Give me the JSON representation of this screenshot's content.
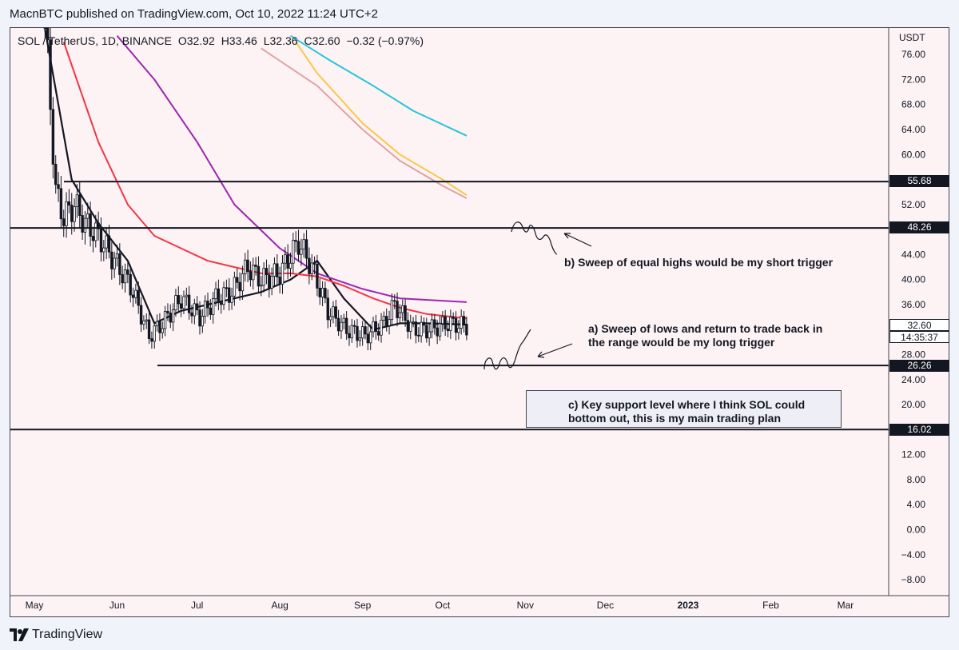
{
  "header": {
    "published_by": "MacnBTC published on TradingView.com, Oct 10, 2022 11:24 UTC+2"
  },
  "legend": {
    "symbol": "SOL / TetherUS, 1D, BINANCE",
    "open": "O32.92",
    "high": "H33.46",
    "low": "L32.36",
    "close": "C32.60",
    "change": "−0.32 (−0.97%)"
  },
  "price_axis": {
    "unit": "USDT",
    "ticks": [
      "76.00",
      "72.00",
      "68.00",
      "64.00",
      "60.00",
      "52.00",
      "44.00",
      "40.00",
      "36.00",
      "28.00",
      "24.00",
      "20.00",
      "12.00",
      "8.00",
      "4.00",
      "0.00",
      "−4.00",
      "−8.00"
    ]
  },
  "time_axis": {
    "ticks": [
      "May",
      "Jun",
      "Jul",
      "Aug",
      "Sep",
      "Oct",
      "Nov",
      "Dec",
      "2023",
      "Feb",
      "Mar"
    ]
  },
  "price_tags": {
    "level_55": "55.68",
    "level_48": "48.26",
    "last_price": "32.60",
    "countdown": "14:35:37",
    "level_26": "26.26",
    "level_16": "16.02"
  },
  "annotations": {
    "b": "b) Sweep of equal highs would be my short trigger",
    "a_line1": "a) Sweep of lows and return to trade back in",
    "a_line2": "the range would be my long trigger",
    "c_line1": "c) Key support level where I think SOL could",
    "c_line2": "bottom out, this is my main trading plan"
  },
  "footer": {
    "brand": "TradingView"
  },
  "colors": {
    "background": "#fdf2f4",
    "ema_black": "#131722",
    "ema_red": "#f23645",
    "ema_purple": "#9c27b0",
    "ema_yellow": "#f7c948",
    "ema_pink": "#e0a3a3",
    "ema_cyan": "#26c6da"
  },
  "chart_data": {
    "type": "line",
    "title": "SOL / TetherUS, 1D, BINANCE",
    "ylabel": "USDT",
    "ylim": [
      -10,
      79
    ],
    "x_ticks": [
      "May",
      "Jun",
      "Jul",
      "Aug",
      "Sep",
      "Oct",
      "Nov",
      "Dec",
      "2023",
      "Feb",
      "Mar"
    ],
    "horizontal_levels": [
      55.68,
      48.26,
      26.26,
      16.02
    ],
    "candles_approx": {
      "x": [
        "2022-05-05",
        "2022-05-09",
        "2022-05-12",
        "2022-05-16",
        "2022-05-20",
        "2022-05-25",
        "2022-05-31",
        "2022-06-06",
        "2022-06-13",
        "2022-06-18",
        "2022-06-25",
        "2022-07-02",
        "2022-07-08",
        "2022-07-14",
        "2022-07-20",
        "2022-07-25",
        "2022-08-01",
        "2022-08-08",
        "2022-08-13",
        "2022-08-19",
        "2022-08-26",
        "2022-09-02",
        "2022-09-09",
        "2022-09-13",
        "2022-09-20",
        "2022-09-26",
        "2022-10-03",
        "2022-10-10"
      ],
      "close": [
        82,
        54,
        50,
        52,
        49,
        47,
        43,
        39,
        31,
        33,
        37,
        34,
        37,
        38,
        42,
        40,
        41,
        46,
        42,
        35,
        32,
        31,
        33,
        36,
        32,
        32,
        33,
        32.6
      ]
    },
    "series": [
      {
        "name": "",
        "color": "#131722",
        "x": [
          "2022-05-05",
          "2022-05-15",
          "2022-05-25",
          "2022-06-05",
          "2022-06-15",
          "2022-06-25",
          "2022-07-05",
          "2022-07-15",
          "2022-07-25",
          "2022-08-05",
          "2022-08-15",
          "2022-08-25",
          "2022-09-05",
          "2022-09-15",
          "2022-09-25",
          "2022-10-10"
        ],
        "values": [
          80,
          56,
          49,
          43,
          33,
          35,
          36,
          37,
          38,
          40,
          43,
          37,
          32,
          33,
          33,
          32.8
        ]
      },
      {
        "name": "",
        "color": "#f23645",
        "x": [
          "2022-05-12",
          "2022-05-25",
          "2022-06-05",
          "2022-06-15",
          "2022-06-25",
          "2022-07-05",
          "2022-07-15",
          "2022-07-25",
          "2022-08-05",
          "2022-08-15",
          "2022-08-25",
          "2022-09-05",
          "2022-09-15",
          "2022-09-25",
          "2022-10-10"
        ],
        "values": [
          78,
          62,
          52,
          47,
          45,
          43,
          42,
          41,
          41,
          40.5,
          39,
          37,
          35.5,
          34.5,
          33.8
        ]
      },
      {
        "name": "",
        "color": "#9c27b0",
        "x": [
          "2022-06-01",
          "2022-06-15",
          "2022-07-01",
          "2022-07-15",
          "2022-08-01",
          "2022-08-15",
          "2022-09-01",
          "2022-09-15",
          "2022-10-10"
        ],
        "values": [
          79,
          72,
          62,
          52,
          45,
          41,
          38.5,
          37,
          36.4
        ]
      },
      {
        "name": "",
        "color": "#f7c948",
        "x": [
          "2022-08-07",
          "2022-08-15",
          "2022-09-01",
          "2022-09-15",
          "2022-10-01",
          "2022-10-10"
        ],
        "values": [
          78,
          73,
          65,
          60,
          56,
          53.5
        ]
      },
      {
        "name": "",
        "color": "#e0a3a3",
        "x": [
          "2022-07-25",
          "2022-08-15",
          "2022-09-01",
          "2022-09-15",
          "2022-10-01",
          "2022-10-10"
        ],
        "values": [
          77,
          71,
          64,
          59,
          55,
          53
        ]
      },
      {
        "name": "",
        "color": "#26c6da",
        "x": [
          "2022-08-05",
          "2022-08-20",
          "2022-09-05",
          "2022-09-20",
          "2022-10-10"
        ],
        "values": [
          79,
          75,
          71,
          67,
          63
        ]
      }
    ]
  }
}
